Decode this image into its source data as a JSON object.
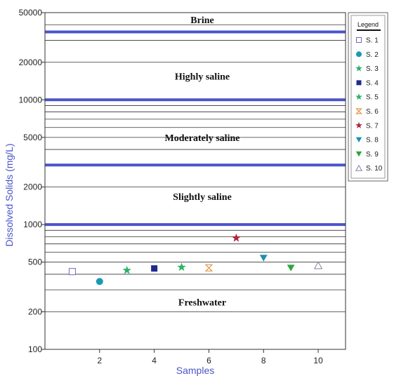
{
  "chart_data": {
    "type": "scatter",
    "title": "",
    "xlabel": "Samples",
    "ylabel": "Dissolved Solids (mg/L)",
    "x_scale": "linear",
    "y_scale": "log",
    "xlim": [
      0,
      11
    ],
    "ylim": [
      100,
      50000
    ],
    "x_ticks": [
      "2",
      "4",
      "6",
      "8",
      "10"
    ],
    "y_ticks": [
      "50000",
      "20000",
      "10000",
      "5000",
      "2000",
      "1000",
      "500",
      "200",
      "100"
    ],
    "grid": "horizontal",
    "legend_position": "right",
    "legend_title": "Legend",
    "classification_lines": [
      {
        "value": 1000,
        "color": "#4a55c8"
      },
      {
        "value": 3000,
        "color": "#4a55c8"
      },
      {
        "value": 10000,
        "color": "#4a55c8"
      },
      {
        "value": 35000,
        "color": "#4a55c8"
      }
    ],
    "zones": [
      {
        "label": "Brine",
        "y": 44000
      },
      {
        "label": "Highly saline",
        "y": 15500
      },
      {
        "label": "Moderately saline",
        "y": 5000
      },
      {
        "label": "Slightly saline",
        "y": 1680
      },
      {
        "label": "Freshwater",
        "y": 240
      }
    ],
    "series": [
      {
        "name": "S. 1",
        "x": 1,
        "y": 420,
        "marker": "square-open",
        "color": "#6b6bb0"
      },
      {
        "name": "S. 2",
        "x": 2,
        "y": 350,
        "marker": "circle",
        "color": "#1a9ab0"
      },
      {
        "name": "S. 3",
        "x": 3,
        "y": 430,
        "marker": "star",
        "color": "#2db36a"
      },
      {
        "name": "S. 4",
        "x": 4,
        "y": 445,
        "marker": "square",
        "color": "#1f2a8c"
      },
      {
        "name": "S. 5",
        "x": 5,
        "y": 455,
        "marker": "star",
        "color": "#2db36a"
      },
      {
        "name": "S. 6",
        "x": 6,
        "y": 450,
        "marker": "hourglass",
        "color": "#e09a4a"
      },
      {
        "name": "S. 7",
        "x": 7,
        "y": 780,
        "marker": "star",
        "color": "#b0283c"
      },
      {
        "name": "S. 8",
        "x": 8,
        "y": 540,
        "marker": "triangle-down",
        "color": "#1f8fb0"
      },
      {
        "name": "S. 9",
        "x": 9,
        "y": 450,
        "marker": "triangle-down",
        "color": "#2aa83a"
      },
      {
        "name": "S. 10",
        "x": 10,
        "y": 470,
        "marker": "triangle-open",
        "color": "#8a7fa0"
      }
    ]
  }
}
